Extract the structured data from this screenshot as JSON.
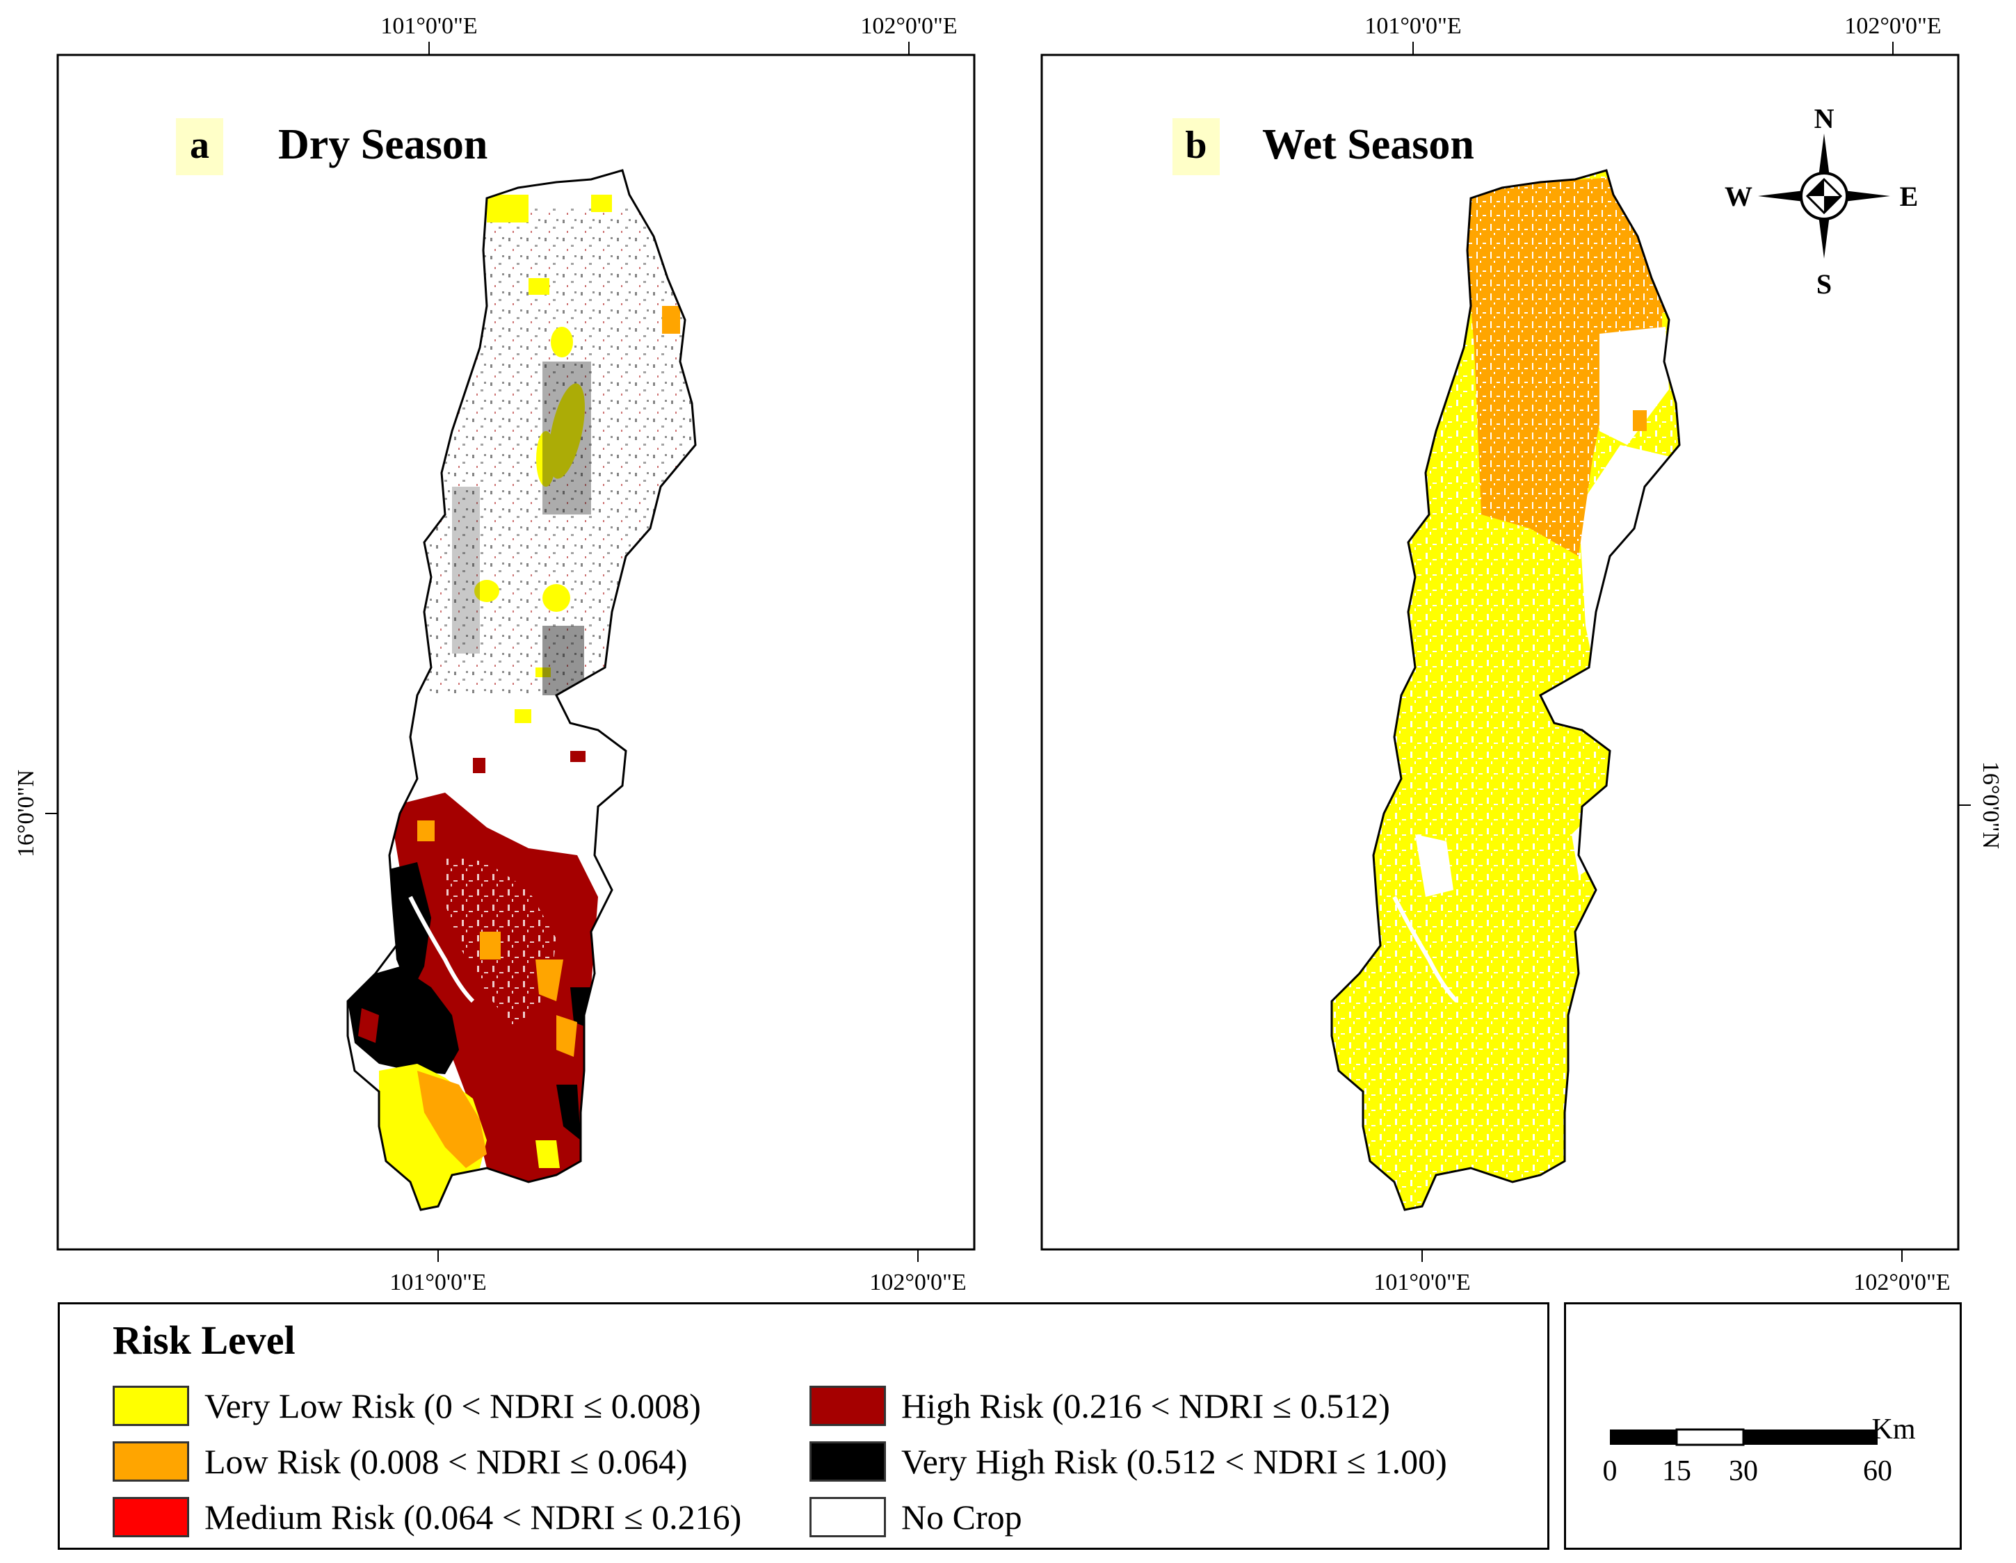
{
  "maps": [
    {
      "panel_letter": "a",
      "title": "Dry Season",
      "top_ticks": [
        "101°0'0\"E",
        "102°0'0\"E"
      ],
      "bottom_ticks": [
        "101°0'0\"E",
        "102°0'0\"E"
      ],
      "left_tick": "16°0'0\"N"
    },
    {
      "panel_letter": "b",
      "title": "Wet Season",
      "top_ticks": [
        "101°0'0\"E",
        "102°0'0\"E"
      ],
      "bottom_ticks": [
        "101°0'0\"E",
        "102°0'0\"E"
      ],
      "right_tick": "16°0'0\"N"
    }
  ],
  "north_arrow": {
    "n": "N",
    "s": "S",
    "e": "E",
    "w": "W"
  },
  "legend": {
    "title": "Risk Level",
    "items": [
      {
        "label": "Very Low Risk (0 < NDRI ≤ 0.008)",
        "color": "#ffff00"
      },
      {
        "label": "Low Risk (0.008 < NDRI ≤ 0.064)",
        "color": "#ffa500"
      },
      {
        "label": "Medium Risk (0.064 < NDRI ≤ 0.216)",
        "color": "#ff0000"
      },
      {
        "label": "High Risk (0.216 < NDRI ≤ 0.512)",
        "color": "#a50000"
      },
      {
        "label": "Very High Risk (0.512 < NDRI ≤ 1.00)",
        "color": "#000000"
      },
      {
        "label": "No Crop",
        "color": "#ffffff"
      }
    ]
  },
  "scale_bar": {
    "unit": "Km",
    "ticks": [
      "0",
      "15",
      "30",
      "60"
    ]
  }
}
